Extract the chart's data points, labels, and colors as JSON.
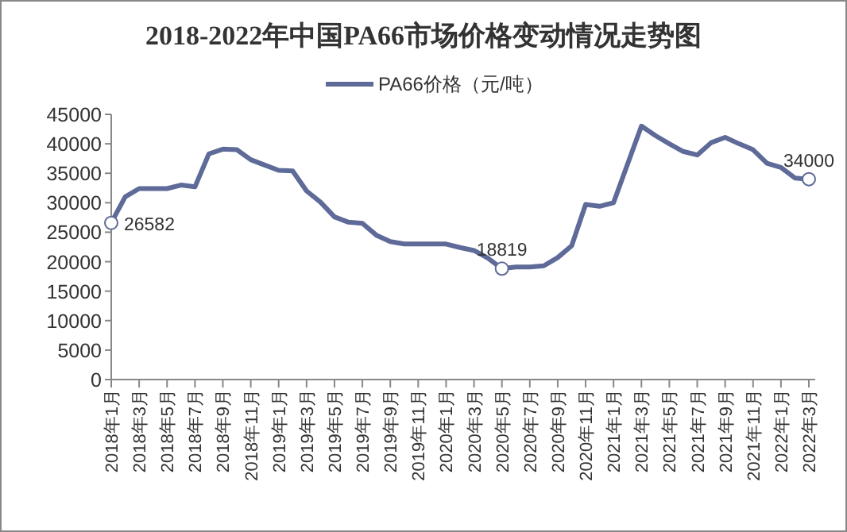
{
  "chart_data": {
    "type": "line",
    "title": "2018-2022年中国PA66市场价格变动情况走势图",
    "categories": [
      "2018年1月",
      null,
      "2018年3月",
      null,
      "2018年5月",
      null,
      "2018年7月",
      null,
      "2018年9月",
      null,
      "2018年11月",
      null,
      "2019年1月",
      null,
      "2019年3月",
      null,
      "2019年5月",
      null,
      "2019年7月",
      null,
      "2019年9月",
      null,
      "2019年11月",
      null,
      "2020年1月",
      null,
      "2020年3月",
      null,
      "2020年5月",
      null,
      "2020年7月",
      null,
      "2020年9月",
      null,
      "2020年11月",
      null,
      "2021年1月",
      null,
      "2021年3月",
      null,
      "2021年5月",
      null,
      "2021年7月",
      null,
      "2021年9月",
      null,
      "2021年11月",
      null,
      "2022年1月",
      null,
      "2022年3月"
    ],
    "series": [
      {
        "name": "PA66价格（元/吨）",
        "color": "#5e6a98",
        "values": [
          26582,
          31000,
          32400,
          32400,
          32400,
          33000,
          32700,
          38300,
          39100,
          39000,
          37300,
          36400,
          35500,
          35400,
          32000,
          30100,
          27600,
          26700,
          26500,
          24500,
          23400,
          23000,
          23000,
          23000,
          23000,
          22400,
          21900,
          20600,
          18819,
          19100,
          19100,
          19300,
          20700,
          22700,
          29700,
          29400,
          30000,
          36500,
          43000,
          41400,
          40000,
          38700,
          38100,
          40200,
          41100,
          40000,
          39000,
          36700,
          36000,
          34200,
          34000
        ],
        "value_labels": [
          "26582",
          null,
          null,
          null,
          null,
          null,
          null,
          null,
          null,
          null,
          null,
          null,
          null,
          null,
          null,
          null,
          null,
          null,
          null,
          null,
          null,
          null,
          null,
          null,
          null,
          null,
          null,
          null,
          "18819",
          null,
          null,
          null,
          null,
          null,
          null,
          null,
          null,
          null,
          null,
          null,
          null,
          null,
          null,
          null,
          null,
          null,
          null,
          null,
          null,
          null,
          "34000"
        ]
      }
    ],
    "ylim": [
      0,
      45000
    ],
    "yticks": [
      0,
      5000,
      10000,
      15000,
      20000,
      25000,
      30000,
      35000,
      40000,
      45000
    ],
    "grid": false,
    "legend": "top"
  }
}
